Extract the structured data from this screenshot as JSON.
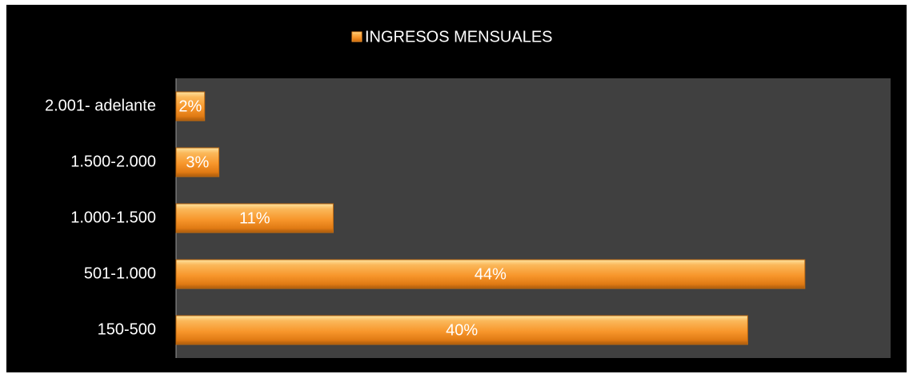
{
  "chart_data": {
    "type": "barh",
    "categories": [
      "150-500",
      "501-1.000",
      "1.000-1.500",
      "1.500-2.000",
      "2.001- adelante"
    ],
    "series": [
      {
        "name": "INGRESOS MENSUALES",
        "color": "#f7962b",
        "values": [
          40,
          44,
          11,
          3,
          2
        ],
        "value_labels": [
          "40%",
          "44%",
          "11%",
          "3%",
          "2%"
        ]
      }
    ],
    "xlim": [
      0,
      50
    ],
    "legend": "top"
  }
}
